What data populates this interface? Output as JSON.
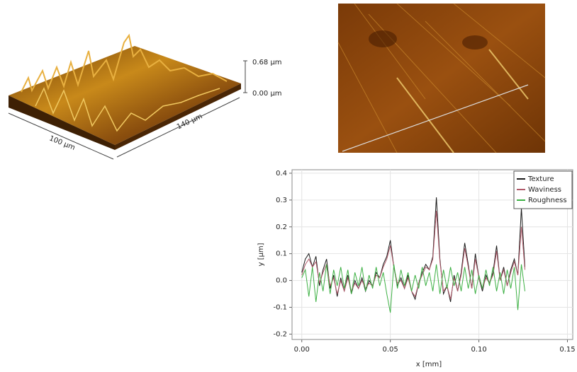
{
  "surface_3d": {
    "scale_top": "0.68 µm",
    "scale_bottom": "0.00 µm",
    "axis_x": "100 µm",
    "axis_y": "140 µm"
  },
  "chart_data": {
    "type": "line",
    "x_label": "x [mm]",
    "y_label": "y [µm]",
    "x": [
      0,
      0.002,
      0.004,
      0.006,
      0.008,
      0.01,
      0.012,
      0.014,
      0.016,
      0.018,
      0.02,
      0.022,
      0.024,
      0.026,
      0.028,
      0.03,
      0.032,
      0.034,
      0.036,
      0.038,
      0.04,
      0.042,
      0.044,
      0.046,
      0.048,
      0.05,
      0.052,
      0.054,
      0.056,
      0.058,
      0.06,
      0.062,
      0.064,
      0.066,
      0.068,
      0.07,
      0.072,
      0.074,
      0.076,
      0.078,
      0.08,
      0.082,
      0.084,
      0.086,
      0.088,
      0.09,
      0.092,
      0.094,
      0.096,
      0.098,
      0.1,
      0.102,
      0.104,
      0.106,
      0.108,
      0.11,
      0.112,
      0.114,
      0.116,
      0.118,
      0.12,
      0.122,
      0.124,
      0.126
    ],
    "series": [
      {
        "name": "Texture",
        "color": "#1a1a1a",
        "values": [
          0.03,
          0.08,
          0.1,
          0.05,
          0.09,
          -0.02,
          0.04,
          0.08,
          -0.03,
          0.02,
          -0.06,
          0.01,
          -0.04,
          0.02,
          -0.05,
          0,
          -0.03,
          0.01,
          -0.04,
          0,
          -0.02,
          0.03,
          0.01,
          0.06,
          0.09,
          0.15,
          0.05,
          -0.02,
          0.01,
          -0.03,
          0.02,
          -0.04,
          -0.07,
          -0.01,
          0.03,
          0.06,
          0.04,
          0.09,
          0.31,
          0.08,
          -0.05,
          -0.02,
          -0.08,
          0.02,
          -0.04,
          0.03,
          0.14,
          0.06,
          -0.03,
          0.1,
          0.01,
          -0.04,
          0.02,
          -0.01,
          0.03,
          0.13,
          0,
          0.05,
          -0.02,
          0.04,
          0.08,
          0.02,
          0.27,
          0.05
        ]
      },
      {
        "name": "Waviness",
        "color": "#b05a6a",
        "values": [
          0.02,
          0.06,
          0.08,
          0.05,
          0.07,
          -0.01,
          0.03,
          0.06,
          -0.02,
          0.01,
          -0.05,
          0,
          -0.04,
          0.01,
          -0.04,
          -0.01,
          -0.03,
          0,
          -0.03,
          -0.01,
          -0.02,
          0.02,
          0.01,
          0.05,
          0.08,
          0.13,
          0.05,
          -0.01,
          0,
          -0.03,
          0.01,
          -0.04,
          -0.06,
          -0.01,
          0.02,
          0.05,
          0.04,
          0.08,
          0.26,
          0.07,
          -0.04,
          -0.02,
          -0.07,
          0.01,
          -0.04,
          0.02,
          0.12,
          0.05,
          -0.03,
          0.08,
          0.01,
          -0.03,
          0.01,
          -0.01,
          0.02,
          0.11,
          0,
          0.04,
          -0.02,
          0.03,
          0.07,
          0.02,
          0.2,
          0.04
        ]
      },
      {
        "name": "Roughness",
        "color": "#3cb043",
        "values": [
          0.01,
          0.04,
          -0.06,
          0.05,
          -0.08,
          0.03,
          -0.04,
          0.06,
          -0.05,
          0.04,
          -0.02,
          0.05,
          -0.03,
          0.04,
          -0.05,
          0.03,
          -0.02,
          0.05,
          -0.04,
          0.02,
          -0.03,
          0.05,
          -0.02,
          0.03,
          -0.05,
          -0.12,
          0.06,
          -0.03,
          0.04,
          -0.02,
          0.03,
          -0.04,
          0.02,
          -0.03,
          0.05,
          -0.02,
          0.03,
          -0.04,
          0.06,
          -0.05,
          0.04,
          -0.03,
          0.05,
          -0.02,
          0.03,
          -0.04,
          0.05,
          -0.03,
          0.04,
          -0.05,
          0.02,
          -0.03,
          0.04,
          -0.02,
          0.05,
          -0.04,
          0.03,
          -0.05,
          0.04,
          -0.03,
          0.05,
          -0.11,
          0.06,
          -0.04
        ]
      }
    ],
    "xlim": [
      -0.0055,
      0.153
    ],
    "ylim": [
      -0.22,
      0.413
    ],
    "xticks": [
      {
        "value": 0,
        "label": "0.00"
      },
      0.05,
      {
        "value": 0.1,
        "label": "0.10"
      },
      0.15
    ],
    "yticks": [
      -0.2,
      -0.1,
      {
        "value": 0,
        "label": "0.0"
      },
      0.1,
      0.2,
      0.3,
      0.4
    ],
    "grid": true,
    "legend": "upper-right"
  }
}
